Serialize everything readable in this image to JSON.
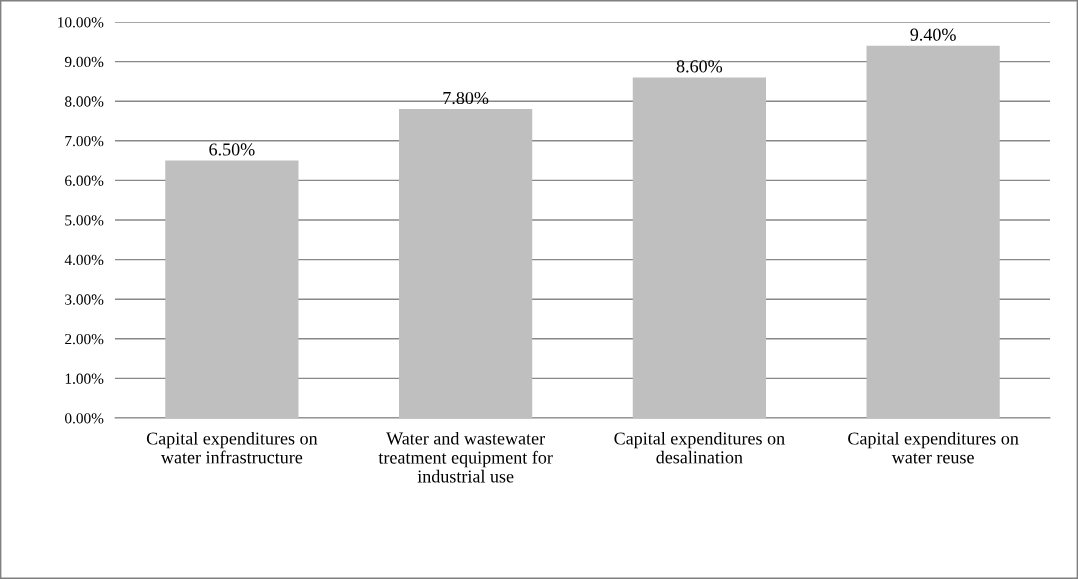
{
  "chart_data": {
    "type": "bar",
    "categories": [
      "Capital expenditures on water infrastructure",
      "Water and wastewater treatment equipment for industrial use",
      "Capital expenditures on desalination",
      "Capital expenditures on water reuse"
    ],
    "values": [
      6.5,
      7.8,
      8.6,
      9.4
    ],
    "value_labels": [
      "6.50%",
      "7.80%",
      "8.60%",
      "9.40%"
    ],
    "color": "#bfbfbf",
    "ylim": [
      0,
      10
    ],
    "yticks": [
      {
        "value": 0,
        "label": "0.00%"
      },
      {
        "value": 1,
        "label": "1.00%"
      },
      {
        "value": 2,
        "label": "2.00%"
      },
      {
        "value": 3,
        "label": "3.00%"
      },
      {
        "value": 4,
        "label": "4.00%"
      },
      {
        "value": 5,
        "label": "5.00%"
      },
      {
        "value": 6,
        "label": "6.00%"
      },
      {
        "value": 7,
        "label": "7.00%"
      },
      {
        "value": 8,
        "label": "8.00%"
      },
      {
        "value": 9,
        "label": "9.00%"
      },
      {
        "value": 10,
        "label": "10.00%"
      }
    ],
    "grid": "y"
  }
}
